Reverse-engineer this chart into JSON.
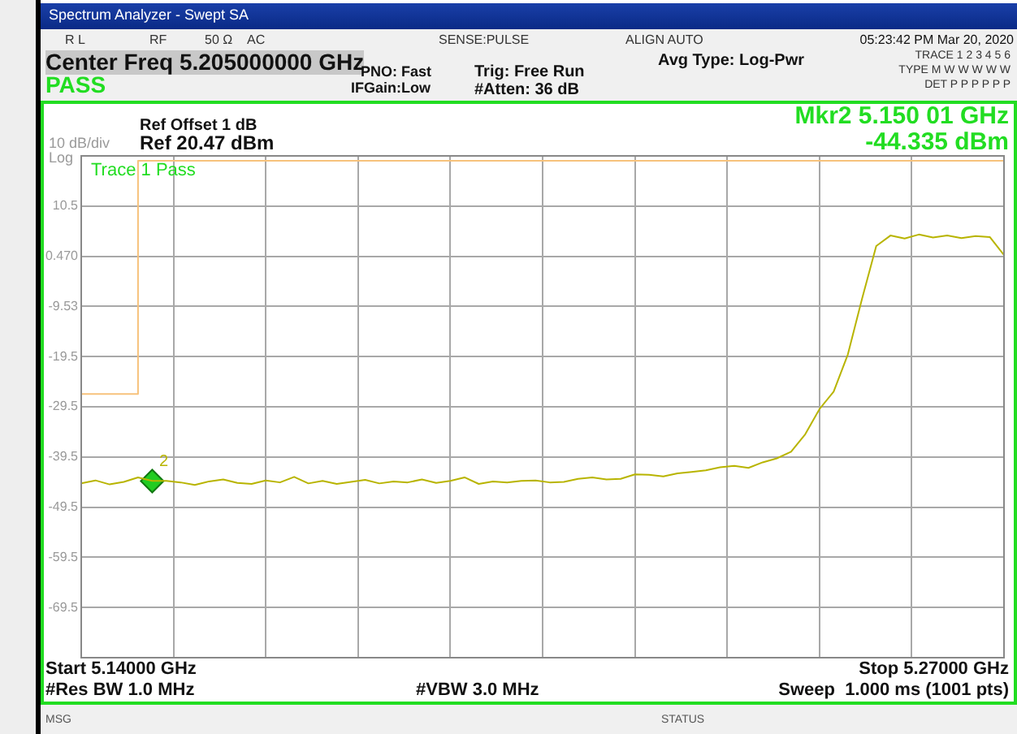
{
  "chart_data": {
    "type": "line",
    "title": "Spectrum Analyzer - Swept SA",
    "categories": [
      null,
      null,
      null,
      null,
      null,
      null,
      null,
      null,
      null,
      null,
      null,
      null,
      null,
      null,
      null,
      null,
      null,
      null,
      null,
      null,
      null,
      null,
      null,
      null,
      null,
      null,
      null,
      null,
      null,
      null,
      null,
      null,
      null,
      null,
      null,
      null,
      null,
      null,
      null,
      null,
      null,
      null,
      null,
      null,
      null,
      null,
      null,
      null,
      null,
      null,
      null,
      null,
      null,
      null,
      null,
      null,
      null,
      null,
      null,
      null,
      null,
      null,
      null,
      null,
      null,
      null
    ],
    "ylim": [
      -79.53,
      20.47
    ],
    "yticks": [
      {
        "value": 10.47,
        "label": "10.5"
      },
      {
        "value": 0.47,
        "label": "0.470"
      },
      {
        "value": -9.53,
        "label": "-9.53"
      },
      {
        "value": -19.53,
        "label": "-19.5"
      },
      {
        "value": -29.53,
        "label": "-29.5"
      },
      {
        "value": -39.53,
        "label": "-39.5"
      },
      {
        "value": -49.53,
        "label": "-49.5"
      },
      {
        "value": -59.53,
        "label": "-59.5"
      },
      {
        "value": -69.53,
        "label": "-69.5"
      }
    ],
    "tick_labels": "y",
    "grid": true,
    "legend": false,
    "series": [
      {
        "color": "#b8b400",
        "marker": "none",
        "line_style": "solid",
        "values": [
          -44.8,
          -44.2,
          -45.0,
          -44.5,
          -43.6,
          -44.3,
          -44.3,
          -44.6,
          -45.1,
          -44.4,
          -44.0,
          -44.7,
          -44.9,
          -44.2,
          -44.6,
          -43.5,
          -44.8,
          -44.3,
          -44.9,
          -44.5,
          -44.1,
          -44.8,
          -44.4,
          -44.6,
          -44.0,
          -44.7,
          -44.3,
          -43.6,
          -44.9,
          -44.4,
          -44.6,
          -44.3,
          -44.2,
          -44.6,
          -44.5,
          -43.9,
          -43.6,
          -44.0,
          -43.9,
          -43.0,
          -43.1,
          -43.4,
          -42.8,
          -42.5,
          -42.2,
          -41.6,
          -41.3,
          -41.7,
          -40.6,
          -39.8,
          -38.5,
          -35.0,
          -30.0,
          -26.5,
          -19.1,
          -8.0,
          2.5,
          4.6,
          4.0,
          4.8,
          4.2,
          4.6,
          4.1,
          4.5,
          4.3,
          0.7
        ]
      },
      {
        "type": "step",
        "color": "#f7c27c",
        "marker": "none",
        "line_style": "solid",
        "values": [
          -27,
          -27,
          -27,
          -27,
          -27,
          19.5,
          19.5,
          19.5,
          19.5,
          19.5,
          19.5,
          19.5,
          19.5,
          19.5,
          19.5,
          19.5,
          19.5,
          19.5,
          19.5,
          19.5,
          19.5,
          19.5,
          19.5,
          19.5,
          19.5,
          19.5,
          19.5,
          19.5,
          19.5,
          19.5,
          19.5,
          19.5,
          19.5,
          19.5,
          19.5,
          19.5,
          19.5,
          19.5,
          19.5,
          19.5,
          19.5,
          19.5,
          19.5,
          19.5,
          19.5,
          19.5,
          19.5,
          19.5,
          19.5,
          19.5,
          19.5,
          19.5,
          19.5,
          19.5,
          19.5,
          19.5,
          19.5,
          19.5,
          19.5,
          19.5,
          19.5,
          19.5,
          19.5,
          19.5,
          19.5,
          19.5
        ]
      },
      {
        "type": "scatter",
        "color": "#22cc22",
        "marker": "diamond",
        "values": [
          null,
          null,
          null,
          null,
          null,
          -44.335,
          null,
          null,
          null,
          null,
          null,
          null,
          null,
          null,
          null,
          null,
          null,
          null,
          null,
          null,
          null,
          null,
          null,
          null,
          null,
          null,
          null,
          null,
          null,
          null,
          null,
          null,
          null,
          null,
          null,
          null,
          null,
          null,
          null,
          null,
          null,
          null,
          null,
          null,
          null,
          null,
          null,
          null,
          null,
          null,
          null,
          null,
          null,
          null,
          null,
          null,
          null,
          null,
          null,
          null,
          null,
          null,
          null,
          null,
          null,
          null
        ]
      }
    ],
    "annotations": [
      "R L",
      "RF",
      "50 Ω",
      "AC",
      "SENSE:PULSE",
      "ALIGN AUTO",
      "05:23:42 PM Mar 20, 2020",
      "Center Freq 5.205000000 GHz",
      "PASS",
      "PNO: Fast",
      "IFGain:Low",
      "Trig: Free Run",
      "#Atten: 36 dB",
      "Avg Type: Log-Pwr",
      "TRACE 1 2 3 4 5 6",
      "TYPE M W W W W W",
      "DET P P P P P P",
      "Ref Offset 1 dB",
      "Ref 20.47 dBm",
      "10 dB/div",
      "Log",
      "Trace 1 Pass",
      "Mkr2 5.150 01 GHz",
      "-44.335 dBm",
      "Start 5.14000 GHz",
      "Stop 5.27000 GHz",
      "#Res BW 1.0 MHz",
      "#VBW 3.0 MHz",
      "Sweep  1.000 ms (1001 pts)",
      "MSG",
      "STATUS",
      "2"
    ]
  }
}
